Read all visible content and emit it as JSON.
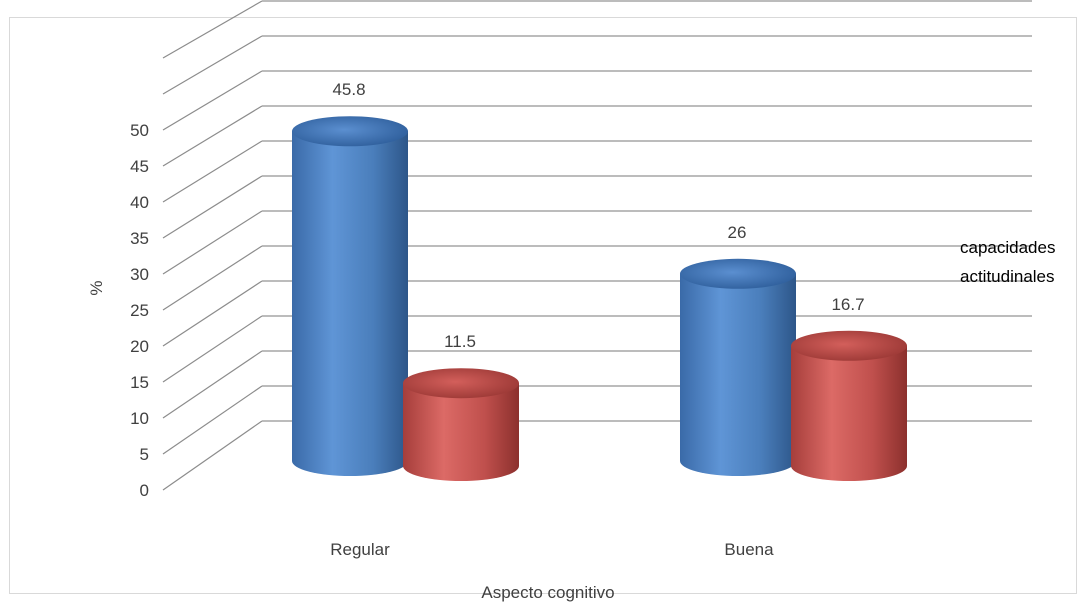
{
  "chart_data": {
    "type": "bar",
    "style": "3d-cylinder",
    "title": "",
    "xlabel": "Aspecto cognitivo",
    "ylabel": "%",
    "ylim": [
      0,
      50
    ],
    "ytick_step": 5,
    "yticks": [
      "0",
      "5",
      "10",
      "15",
      "20",
      "25",
      "30",
      "35",
      "40",
      "45",
      "50"
    ],
    "grid": true,
    "categories": [
      "Regular",
      "Buena"
    ],
    "series": [
      {
        "values": [
          45.8,
          26
        ],
        "color": "#4a7ebb"
      },
      {
        "name": "capacidades actitudinales",
        "values": [
          11.5,
          16.7
        ],
        "color": "#c0504d"
      }
    ],
    "data_labels": [
      [
        "45.8",
        "26"
      ],
      [
        "11.5",
        "16.7"
      ]
    ],
    "legend": {
      "position": "right",
      "lines": [
        "capacidades",
        "actitudinales"
      ]
    }
  }
}
